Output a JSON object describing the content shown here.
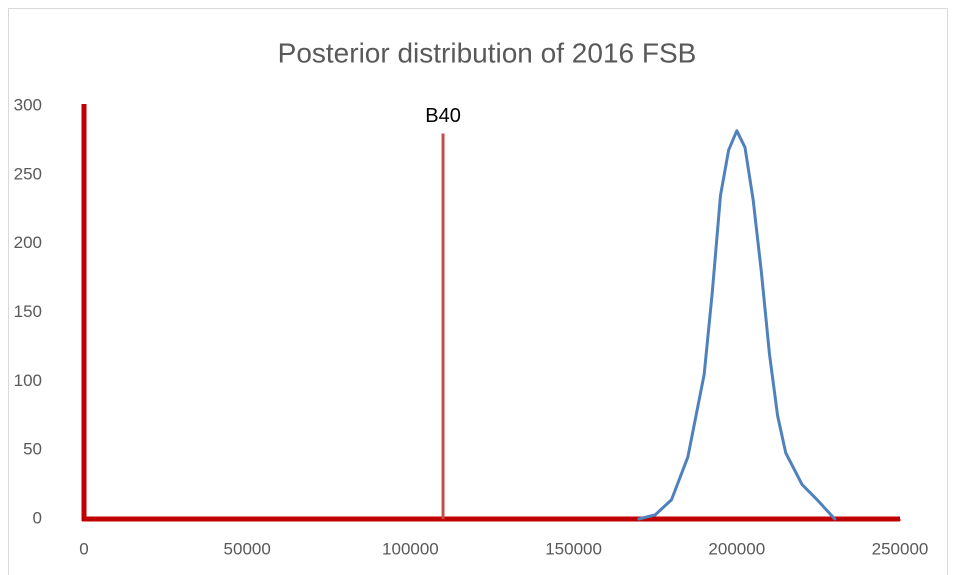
{
  "chart_data": {
    "type": "line",
    "title": "Posterior distribution of 2016 FSB",
    "x": [
      170000,
      175000,
      180000,
      185000,
      190000,
      192500,
      195000,
      197500,
      200000,
      202500,
      205000,
      207500,
      210000,
      212500,
      215000,
      220000,
      225000,
      230000
    ],
    "values": [
      0,
      3,
      14,
      45,
      105,
      165,
      235,
      268,
      282,
      270,
      232,
      180,
      120,
      75,
      48,
      25,
      13,
      0
    ],
    "color": "#4f81bd",
    "xlim": [
      0,
      250000
    ],
    "xticks": [
      0,
      50000,
      100000,
      150000,
      200000,
      250000
    ],
    "ylim": [
      0,
      300
    ],
    "yticks": [
      0,
      50,
      100,
      150,
      200,
      250,
      300
    ],
    "axis_color": "#c00000",
    "annotations": [
      {
        "label": "B40",
        "x": 110000,
        "y": 280,
        "color": "#c0504d"
      }
    ]
  }
}
